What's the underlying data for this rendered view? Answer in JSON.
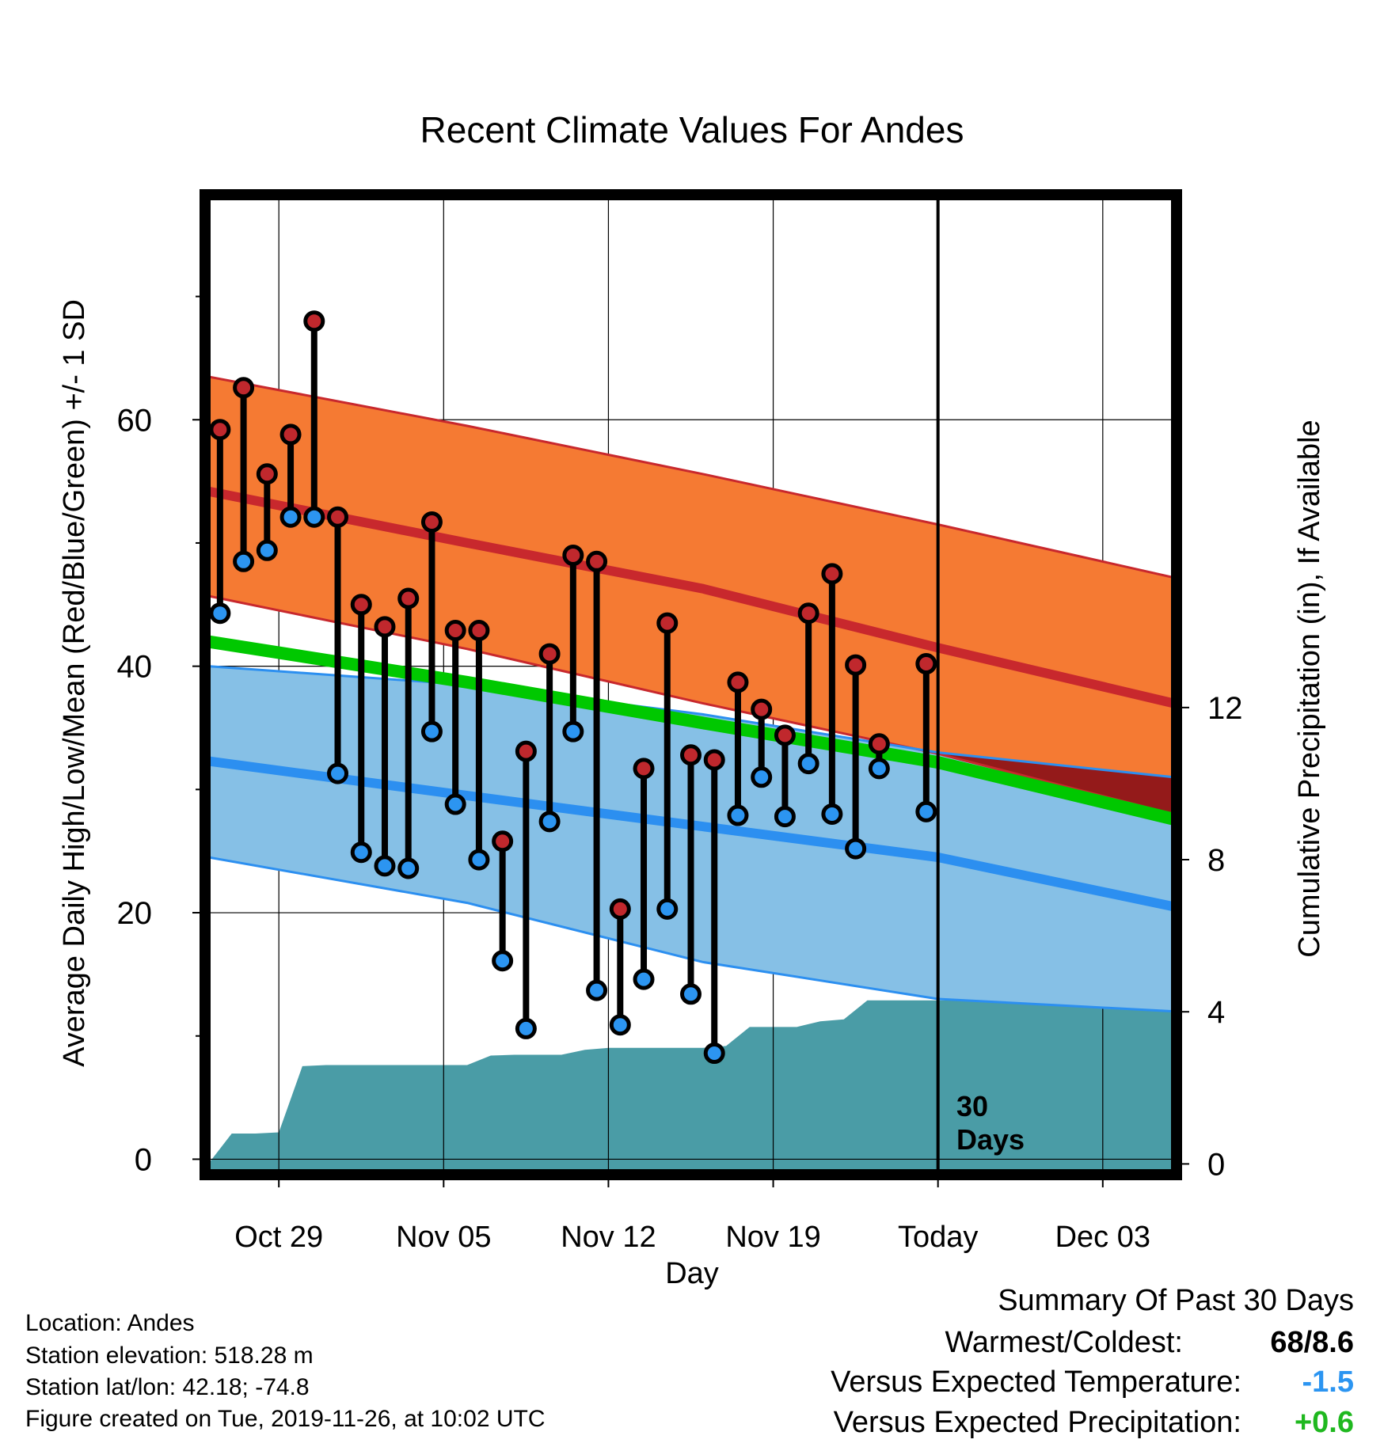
{
  "chart_data": {
    "type": "line",
    "title": "Recent Climate Values For Andes",
    "xlabel": "Day",
    "ylabel_left": "Average Daily High/Low/Mean (Red/Blue/Green) +/- 1 SD",
    "ylabel_right": "Cumulative Precipitation (in), If Available",
    "x_start": "2019-10-26",
    "x_end": "2019-12-06",
    "today": "2019-11-26",
    "x_ticks": [
      {
        "date": "2019-10-29",
        "label": "Oct 29"
      },
      {
        "date": "2019-11-05",
        "label": "Nov 05"
      },
      {
        "date": "2019-11-12",
        "label": "Nov 12"
      },
      {
        "date": "2019-11-19",
        "label": "Nov 19"
      },
      {
        "date": "2019-11-26",
        "label": "Today"
      },
      {
        "date": "2019-12-03",
        "label": "Dec 03"
      }
    ],
    "ylim_left": [
      -1,
      78
    ],
    "yticks_left": [
      0,
      20,
      40,
      60
    ],
    "ylim_right": [
      -0.2,
      25.4
    ],
    "yticks_right": [
      0,
      4,
      8,
      12
    ],
    "grid": true,
    "annotation": "30\nDays",
    "normals": {
      "dates": [
        "2019-10-26",
        "2019-11-06",
        "2019-11-16",
        "2019-11-26",
        "2019-12-06"
      ],
      "high_plus_sd": [
        63.5,
        59.5,
        55.6,
        51.5,
        47.2
      ],
      "high_mean": [
        54.2,
        50.0,
        46.3,
        41.5,
        37.0
      ],
      "high_minus_sd": [
        45.7,
        41.4,
        37.0,
        32.9,
        28.0
      ],
      "mean": [
        42.0,
        38.7,
        35.4,
        32.2,
        27.6
      ],
      "low_plus_sd": [
        40.0,
        38.5,
        36.1,
        33.0,
        31.0
      ],
      "low_mean": [
        32.3,
        29.5,
        27.0,
        24.5,
        20.5
      ],
      "low_minus_sd": [
        24.5,
        20.8,
        16.0,
        13.0,
        12.0
      ]
    },
    "series": [
      {
        "name": "High",
        "color": "#c0282d",
        "x": [
          "2019-10-26",
          "2019-10-27",
          "2019-10-28",
          "2019-10-29",
          "2019-10-30",
          "2019-10-31",
          "2019-11-01",
          "2019-11-02",
          "2019-11-03",
          "2019-11-04",
          "2019-11-05",
          "2019-11-06",
          "2019-11-07",
          "2019-11-08",
          "2019-11-09",
          "2019-11-10",
          "2019-11-11",
          "2019-11-12",
          "2019-11-13",
          "2019-11-14",
          "2019-11-15",
          "2019-11-16",
          "2019-11-17",
          "2019-11-18",
          "2019-11-19",
          "2019-11-20",
          "2019-11-21",
          "2019-11-22",
          "2019-11-23",
          "2019-11-24",
          "2019-11-25"
        ],
        "values": [
          59.2,
          62.6,
          55.6,
          58.8,
          68.0,
          52.1,
          45.0,
          43.2,
          45.5,
          51.7,
          42.9,
          42.9,
          25.8,
          33.1,
          41.0,
          49.0,
          48.5,
          20.3,
          31.7,
          43.5,
          32.8,
          32.4,
          38.7,
          36.5,
          34.4,
          44.3,
          47.5,
          40.1,
          33.7,
          null,
          40.2
        ]
      },
      {
        "name": "Low",
        "color": "#2c95f1",
        "x": [
          "2019-10-26",
          "2019-10-27",
          "2019-10-28",
          "2019-10-29",
          "2019-10-30",
          "2019-10-31",
          "2019-11-01",
          "2019-11-02",
          "2019-11-03",
          "2019-11-04",
          "2019-11-05",
          "2019-11-06",
          "2019-11-07",
          "2019-11-08",
          "2019-11-09",
          "2019-11-10",
          "2019-11-11",
          "2019-11-12",
          "2019-11-13",
          "2019-11-14",
          "2019-11-15",
          "2019-11-16",
          "2019-11-17",
          "2019-11-18",
          "2019-11-19",
          "2019-11-20",
          "2019-11-21",
          "2019-11-22",
          "2019-11-23",
          "2019-11-24",
          "2019-11-25"
        ],
        "values": [
          44.3,
          48.5,
          49.4,
          52.1,
          52.1,
          31.3,
          24.9,
          23.8,
          23.6,
          34.7,
          28.8,
          24.3,
          16.1,
          10.6,
          27.4,
          34.7,
          13.7,
          10.9,
          14.6,
          20.3,
          13.4,
          8.6,
          27.9,
          31.0,
          27.8,
          32.1,
          28.0,
          25.2,
          31.7,
          null,
          28.2
        ]
      },
      {
        "name": "Cumulative Precipitation",
        "color": "#4a9ca6",
        "x": [
          "2019-10-26",
          "2019-10-27",
          "2019-10-28",
          "2019-10-29",
          "2019-10-30",
          "2019-10-31",
          "2019-11-01",
          "2019-11-02",
          "2019-11-03",
          "2019-11-04",
          "2019-11-05",
          "2019-11-06",
          "2019-11-07",
          "2019-11-08",
          "2019-11-09",
          "2019-11-10",
          "2019-11-11",
          "2019-11-12",
          "2019-11-13",
          "2019-11-14",
          "2019-11-15",
          "2019-11-16",
          "2019-11-17",
          "2019-11-18",
          "2019-11-19",
          "2019-11-20",
          "2019-11-21",
          "2019-11-22",
          "2019-11-23",
          "2019-11-24",
          "2019-11-25",
          "2019-11-26",
          "2019-12-06"
        ],
        "values": [
          0.0,
          0.8,
          0.8,
          0.83,
          2.57,
          2.6,
          2.6,
          2.6,
          2.6,
          2.6,
          2.6,
          2.6,
          2.85,
          2.87,
          2.87,
          2.87,
          3.0,
          3.05,
          3.05,
          3.05,
          3.05,
          3.05,
          3.1,
          3.6,
          3.6,
          3.6,
          3.75,
          3.8,
          4.3,
          4.3,
          4.3,
          4.3,
          4.3
        ]
      }
    ]
  },
  "footer": {
    "location": "Location: Andes",
    "elevation": "Station elevation: 518.28 m",
    "latlon": "Station lat/lon: 42.18; -74.8",
    "created": "Figure created on Tue, 2019-11-26, at 10:02 UTC"
  },
  "summary": {
    "heading": "Summary Of Past 30 Days",
    "warm_cold_label": "Warmest/Coldest:",
    "warm_cold_value": "68/8.6",
    "temp_label": "Versus Expected Temperature:",
    "temp_value": "-1.5",
    "temp_color": "#2c95f1",
    "precip_label": "Versus Expected Precipitation:",
    "precip_value": "+0.6",
    "precip_color": "#1fb81f"
  },
  "colors": {
    "high_band": "#f57a33",
    "high_line": "#c8282d",
    "low_band": "#86c0e6",
    "low_line": "#2c8ff0",
    "mean_line": "#00c800",
    "overlap": "#941a1a",
    "precip": "#4a9ca6"
  }
}
